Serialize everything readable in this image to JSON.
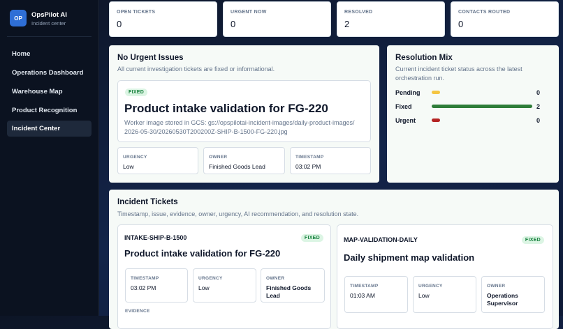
{
  "sidebar": {
    "logo": "OP",
    "name": "OpsPilot AI",
    "subtitle": "Incident center",
    "nav": [
      "Home",
      "Operations Dashboard",
      "Warehouse Map",
      "Product Recognition",
      "Incident Center"
    ]
  },
  "stats": [
    {
      "label": "OPEN TICKETS",
      "value": 0
    },
    {
      "label": "URGENT NOW",
      "value": 0
    },
    {
      "label": "RESOLVED",
      "value": 2
    },
    {
      "label": "CONTACTS ROUTED",
      "value": 0
    }
  ],
  "summary": {
    "title": "No Urgent Issues",
    "subtitle": "All current investigation tickets are fixed or informational.",
    "status": "FIXED",
    "heading": "Product intake validation for FG-220",
    "description": "Worker image stored in GCS: gs://opspilotai-incident-images/daily-product-images/2026-05-30/20260530T200200Z-SHIP-B-1500-FG-220.jpg",
    "fields": [
      {
        "label": "URGENCY",
        "value": "Low"
      },
      {
        "label": "OWNER",
        "value": "Finished Goods Lead"
      },
      {
        "label": "TIMESTAMP",
        "value": "03:02 PM"
      }
    ]
  },
  "resolution": {
    "title": "Resolution Mix",
    "subtitle": "Current incident ticket status across the latest orchestration run.",
    "rows": [
      {
        "label": "Pending",
        "count": 0
      },
      {
        "label": "Fixed",
        "count": 2
      },
      {
        "label": "Urgent",
        "count": 0
      }
    ]
  },
  "tickets": {
    "title": "Incident Tickets",
    "subtitle": "Timestamp, issue, evidence, owner, urgency, AI recommendation, and resolution state.",
    "items": [
      {
        "id": "INTAKE-SHIP-B-1500",
        "status": "FIXED",
        "title": "Product intake validation for FG-220",
        "fields": [
          {
            "label": "TIMESTAMP",
            "value": "03:02 PM"
          },
          {
            "label": "URGENCY",
            "value": "Low"
          },
          {
            "label": "OWNER",
            "value": "Finished Goods Lead"
          }
        ],
        "evidence_label": "EVIDENCE"
      },
      {
        "id": "MAP-VALIDATION-DAILY",
        "status": "FIXED",
        "title": "Daily shipment map validation",
        "fields": [
          {
            "label": "TIMESTAMP",
            "value": "01:03 AM"
          },
          {
            "label": "URGENCY",
            "value": "Low"
          },
          {
            "label": "OWNER",
            "value": "Operations Supervisor"
          }
        ]
      }
    ]
  }
}
